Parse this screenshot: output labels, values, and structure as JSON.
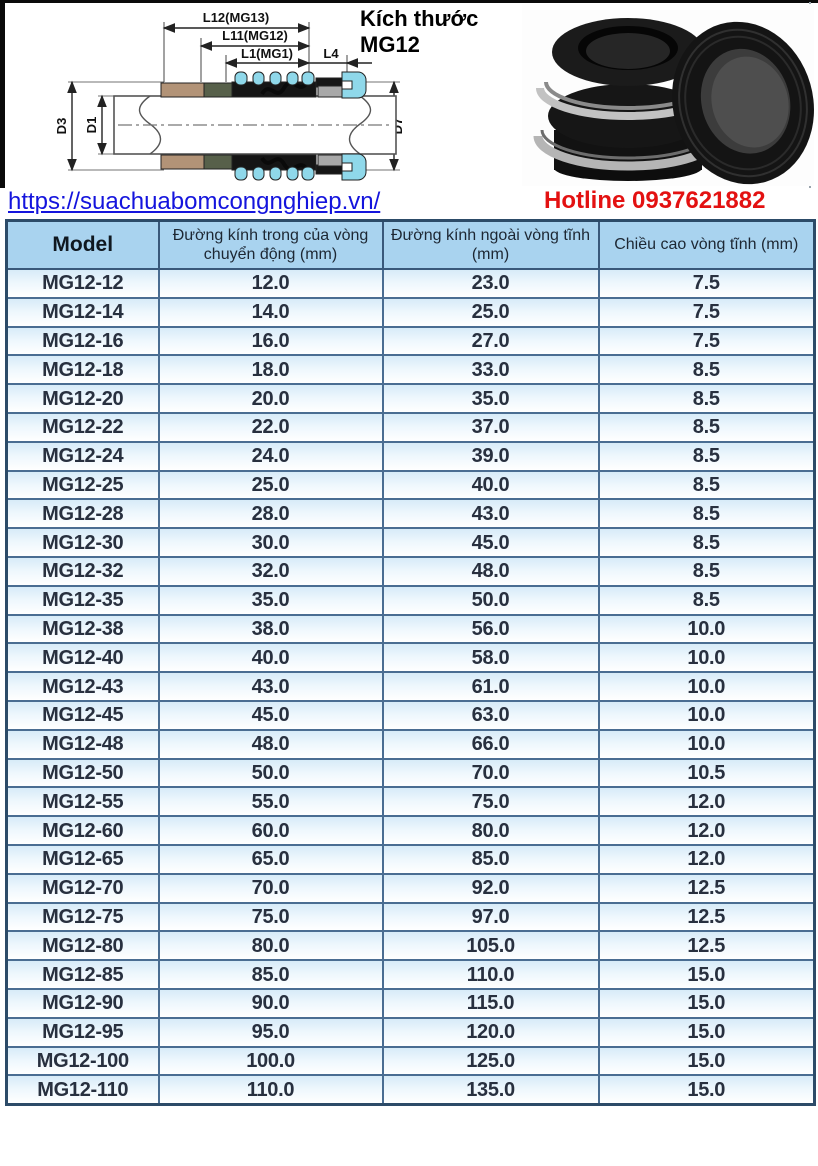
{
  "page": {
    "title": "Kích thước MG12",
    "website_url": "https://suachuabomcongnghiep.vn/",
    "hotline": "Hotline 0937621882"
  },
  "diagram": {
    "dim_l12": "L12(MG13)",
    "dim_l11": "L11(MG12)",
    "dim_l1": "L1(MG1)",
    "dim_l4": "L4",
    "dim_d3": "D3",
    "dim_d1": "D1",
    "dim_d7": "D7"
  },
  "table": {
    "columns": [
      "Model",
      "Đường kính trong của vòng chuyển động (mm)",
      "Đường kính ngoài vòng tĩnh (mm)",
      "Chiều cao vòng tĩnh (mm)"
    ],
    "rows": [
      [
        "MG12-12",
        "12.0",
        "23.0",
        "7.5"
      ],
      [
        "MG12-14",
        "14.0",
        "25.0",
        "7.5"
      ],
      [
        "MG12-16",
        "16.0",
        "27.0",
        "7.5"
      ],
      [
        "MG12-18",
        "18.0",
        "33.0",
        "8.5"
      ],
      [
        "MG12-20",
        "20.0",
        "35.0",
        "8.5"
      ],
      [
        "MG12-22",
        "22.0",
        "37.0",
        "8.5"
      ],
      [
        "MG12-24",
        "24.0",
        "39.0",
        "8.5"
      ],
      [
        "MG12-25",
        "25.0",
        "40.0",
        "8.5"
      ],
      [
        "MG12-28",
        "28.0",
        "43.0",
        "8.5"
      ],
      [
        "MG12-30",
        "30.0",
        "45.0",
        "8.5"
      ],
      [
        "MG12-32",
        "32.0",
        "48.0",
        "8.5"
      ],
      [
        "MG12-35",
        "35.0",
        "50.0",
        "8.5"
      ],
      [
        "MG12-38",
        "38.0",
        "56.0",
        "10.0"
      ],
      [
        "MG12-40",
        "40.0",
        "58.0",
        "10.0"
      ],
      [
        "MG12-43",
        "43.0",
        "61.0",
        "10.0"
      ],
      [
        "MG12-45",
        "45.0",
        "63.0",
        "10.0"
      ],
      [
        "MG12-48",
        "48.0",
        "66.0",
        "10.0"
      ],
      [
        "MG12-50",
        "50.0",
        "70.0",
        "10.5"
      ],
      [
        "MG12-55",
        "55.0",
        "75.0",
        "12.0"
      ],
      [
        "MG12-60",
        "60.0",
        "80.0",
        "12.0"
      ],
      [
        "MG12-65",
        "65.0",
        "85.0",
        "12.0"
      ],
      [
        "MG12-70",
        "70.0",
        "92.0",
        "12.5"
      ],
      [
        "MG12-75",
        "75.0",
        "97.0",
        "12.5"
      ],
      [
        "MG12-80",
        "80.0",
        "105.0",
        "12.5"
      ],
      [
        "MG12-85",
        "85.0",
        "110.0",
        "15.0"
      ],
      [
        "MG12-90",
        "90.0",
        "115.0",
        "15.0"
      ],
      [
        "MG12-95",
        "95.0",
        "120.0",
        "15.0"
      ],
      [
        "MG12-100",
        "100.0",
        "125.0",
        "15.0"
      ],
      [
        "MG12-110",
        "110.0",
        "135.0",
        "15.0"
      ]
    ]
  },
  "colors": {
    "header_bg": "#a9d3ef",
    "table_border": "#2c4b68",
    "row_divider": "#4a6d92",
    "row_stripe_top": "#d7ebf8",
    "link_blue": "#1414dd",
    "hotline_red": "#e31111",
    "text_dark": "#28303f",
    "seal_tan": "#b29377",
    "seal_olive": "#57604a",
    "seal_cyan": "#8fd8ea",
    "seal_gray": "#a8a8a8"
  }
}
